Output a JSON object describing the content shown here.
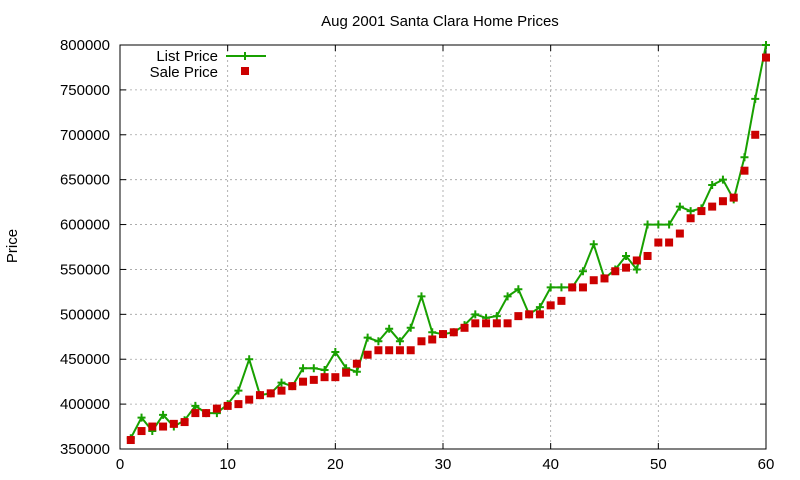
{
  "chart_data": {
    "type": "line",
    "title": "Aug 2001 Santa Clara Home Prices",
    "xlabel": "",
    "ylabel": "Price",
    "xlim": [
      0,
      60
    ],
    "ylim": [
      350000,
      800000
    ],
    "xticks": [
      0,
      10,
      20,
      30,
      40,
      50,
      60
    ],
    "yticks": [
      350000,
      400000,
      450000,
      500000,
      550000,
      600000,
      650000,
      700000,
      750000,
      800000
    ],
    "grid": true,
    "legend_position": "top-left",
    "series": [
      {
        "name": "List Price",
        "style": "line-with-plus-markers",
        "color": "#18a000",
        "x": [
          1,
          2,
          3,
          4,
          5,
          6,
          7,
          8,
          9,
          10,
          11,
          12,
          13,
          14,
          15,
          16,
          17,
          18,
          19,
          20,
          21,
          22,
          23,
          24,
          25,
          26,
          27,
          28,
          29,
          30,
          31,
          32,
          33,
          34,
          35,
          36,
          37,
          38,
          39,
          40,
          41,
          42,
          43,
          44,
          45,
          46,
          47,
          48,
          49,
          50,
          51,
          52,
          53,
          54,
          55,
          56,
          57,
          58,
          59,
          60
        ],
        "values": [
          362000,
          385000,
          370000,
          388000,
          375000,
          382000,
          398000,
          390000,
          390000,
          400000,
          415000,
          450000,
          410000,
          412000,
          424000,
          420000,
          440000,
          440000,
          438000,
          458000,
          440000,
          436000,
          474000,
          470000,
          484000,
          470000,
          485000,
          520000,
          480000,
          478000,
          480000,
          488000,
          500000,
          496000,
          498000,
          520000,
          528000,
          500000,
          508000,
          530000,
          530000,
          530000,
          548000,
          578000,
          540000,
          550000,
          565000,
          550000,
          600000,
          600000,
          600000,
          620000,
          615000,
          618000,
          644000,
          650000,
          628000,
          675000,
          740000,
          800000
        ]
      },
      {
        "name": "Sale Price",
        "style": "square-markers",
        "color": "#cc0000",
        "x": [
          1,
          2,
          3,
          4,
          5,
          6,
          7,
          8,
          9,
          10,
          11,
          12,
          13,
          14,
          15,
          16,
          17,
          18,
          19,
          20,
          21,
          22,
          23,
          24,
          25,
          26,
          27,
          28,
          29,
          30,
          31,
          32,
          33,
          34,
          35,
          36,
          37,
          38,
          39,
          40,
          41,
          42,
          43,
          44,
          45,
          46,
          47,
          48,
          49,
          50,
          51,
          52,
          53,
          54,
          55,
          56,
          57,
          58,
          59,
          60
        ],
        "values": [
          360000,
          370000,
          375000,
          375000,
          378000,
          380000,
          390000,
          390000,
          395000,
          398000,
          400000,
          405000,
          410000,
          412000,
          415000,
          420000,
          425000,
          427000,
          430000,
          430000,
          435000,
          445000,
          455000,
          460000,
          460000,
          460000,
          460000,
          470000,
          472000,
          478000,
          480000,
          485000,
          490000,
          490000,
          490000,
          490000,
          498000,
          500000,
          500000,
          510000,
          515000,
          530000,
          530000,
          538000,
          540000,
          548000,
          552000,
          560000,
          565000,
          580000,
          580000,
          590000,
          607000,
          615000,
          620000,
          626000,
          630000,
          660000,
          700000,
          786000
        ]
      }
    ]
  }
}
